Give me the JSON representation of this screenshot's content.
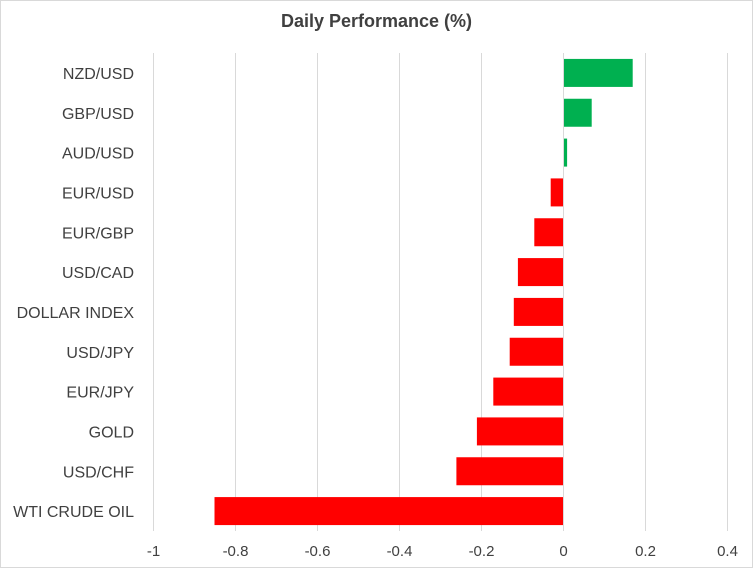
{
  "chart_data": {
    "type": "bar",
    "orientation": "horizontal",
    "title": "Daily Performance (%)",
    "xlabel": "",
    "ylabel": "",
    "categories": [
      "NZD/USD",
      "GBP/USD",
      "AUD/USD",
      "EUR/USD",
      "EUR/GBP",
      "USD/CAD",
      "DOLLAR INDEX",
      "USD/JPY",
      "EUR/JPY",
      "GOLD",
      "USD/CHF",
      "WTI CRUDE OIL"
    ],
    "values": [
      0.17,
      0.07,
      0.01,
      -0.03,
      -0.07,
      -0.11,
      -0.12,
      -0.13,
      -0.17,
      -0.21,
      -0.26,
      -0.85
    ],
    "xlim": [
      -1,
      0.4
    ],
    "xticks": [
      -1,
      -0.8,
      -0.6,
      -0.4,
      -0.2,
      0,
      0.2,
      0.4
    ],
    "xtick_labels": [
      "-1",
      "-0.8",
      "-0.6",
      "-0.4",
      "-0.2",
      "0",
      "0.2",
      "0.4"
    ],
    "grid": "vertical",
    "legend": "none",
    "colors": {
      "positive": "#00b050",
      "negative": "#ff0000"
    }
  }
}
